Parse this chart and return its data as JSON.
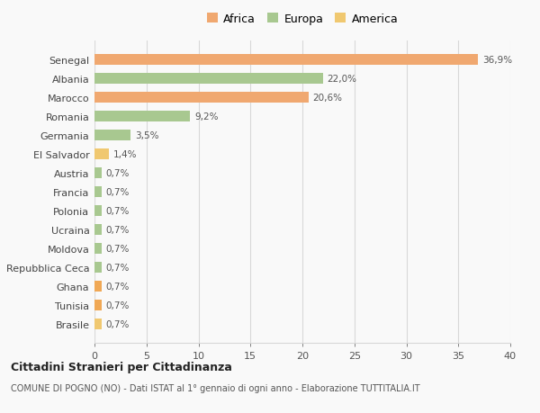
{
  "categories": [
    "Brasile",
    "Tunisia",
    "Ghana",
    "Repubblica Ceca",
    "Moldova",
    "Ucraina",
    "Polonia",
    "Francia",
    "Austria",
    "El Salvador",
    "Germania",
    "Romania",
    "Marocco",
    "Albania",
    "Senegal"
  ],
  "values": [
    0.7,
    0.7,
    0.7,
    0.7,
    0.7,
    0.7,
    0.7,
    0.7,
    0.7,
    1.4,
    3.5,
    9.2,
    20.6,
    22.0,
    36.9
  ],
  "colors": [
    "#f0c870",
    "#f0a855",
    "#f0a855",
    "#a8c890",
    "#a8c890",
    "#a8c890",
    "#a8c890",
    "#a8c890",
    "#a8c890",
    "#f0c870",
    "#a8c890",
    "#a8c890",
    "#f0a870",
    "#a8c890",
    "#f0a870"
  ],
  "labels": [
    "0,7%",
    "0,7%",
    "0,7%",
    "0,7%",
    "0,7%",
    "0,7%",
    "0,7%",
    "0,7%",
    "0,7%",
    "1,4%",
    "3,5%",
    "9,2%",
    "20,6%",
    "22,0%",
    "36,9%"
  ],
  "legend_labels": [
    "Africa",
    "Europa",
    "America"
  ],
  "legend_colors": [
    "#f0a870",
    "#a8c890",
    "#f0c870"
  ],
  "title1": "Cittadini Stranieri per Cittadinanza",
  "title2": "COMUNE DI POGNO (NO) - Dati ISTAT al 1° gennaio di ogni anno - Elaborazione TUTTITALIA.IT",
  "xlim": [
    0,
    40
  ],
  "xticks": [
    0,
    5,
    10,
    15,
    20,
    25,
    30,
    35,
    40
  ],
  "background_color": "#f9f9f9",
  "grid_color": "#d8d8d8",
  "bar_height": 0.55
}
